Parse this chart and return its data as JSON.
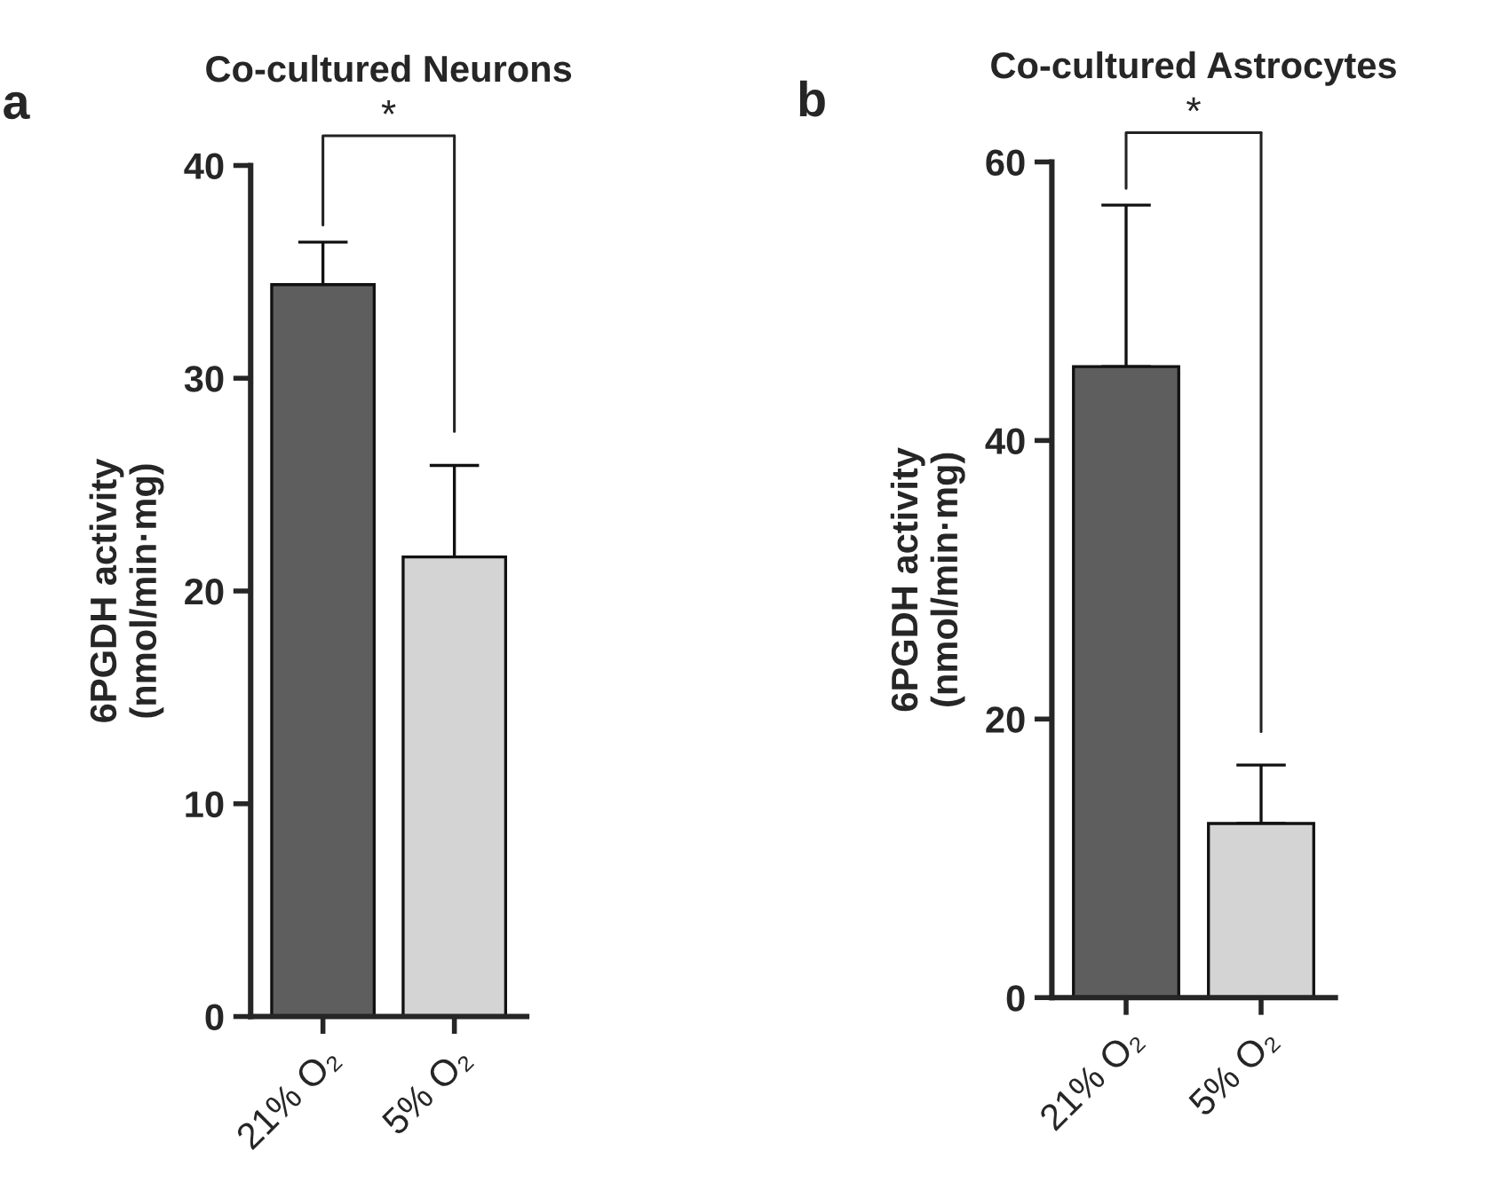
{
  "chart_data": [
    {
      "type": "bar",
      "title": "Co-cultured Neurons",
      "ylabel": "6PGDH activity\n(nmol/min·mg)",
      "categories": [
        "21% O₂",
        "5% O₂"
      ],
      "values": [
        34.4,
        21.6
      ],
      "colors": [
        "#5e5e5e",
        "#d4d4d4"
      ],
      "errors": [
        [
          34.4,
          36.4
        ],
        [
          21.6,
          25.9
        ]
      ],
      "ylim": [
        0,
        40
      ],
      "yticks": [
        0,
        10,
        20,
        30,
        40
      ],
      "annotations": [
        "a",
        "*"
      ],
      "grid": false,
      "legend": false
    },
    {
      "type": "bar",
      "title": "Co-cultured Astrocytes",
      "ylabel": "6PGDH activity\n(nmol/min·mg)",
      "categories": [
        "21% O₂",
        "5% O₂"
      ],
      "values": [
        45.3,
        12.5
      ],
      "colors": [
        "#5e5e5e",
        "#d4d4d4"
      ],
      "errors": [
        [
          45.3,
          56.9
        ],
        [
          12.5,
          16.7
        ]
      ],
      "ylim": [
        0,
        60
      ],
      "yticks": [
        0,
        20,
        40,
        60
      ],
      "annotations": [
        "b",
        "*"
      ],
      "grid": false,
      "legend": false
    }
  ]
}
